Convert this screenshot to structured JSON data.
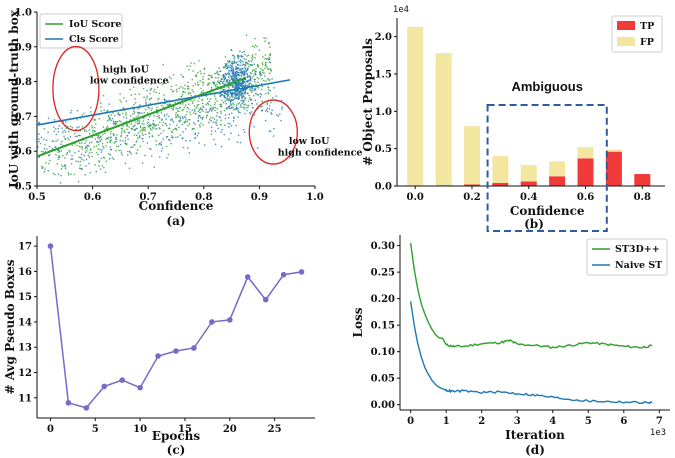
{
  "colors": {
    "iou": "#2ca02c",
    "cls": "#1f77b4",
    "tp": "#f03a3a",
    "fp": "#f2e6a0",
    "epoch_line": "#7b68c8",
    "st3d": "#2ca02c",
    "naive": "#1f77b4",
    "ambig": "#2e5c9e",
    "ellipse": "#e02020"
  },
  "chart_data": [
    {
      "type": "scatter",
      "label": "(a)",
      "xlabel": "Confidence",
      "ylabel": "IoU with ground-truth box",
      "xlim": [
        0.5,
        1.0
      ],
      "ylim": [
        0.5,
        1.0
      ],
      "xticks": [
        "0.5",
        "0.6",
        "0.7",
        "0.8",
        "0.9",
        "1.0"
      ],
      "yticks": [
        "0.5",
        "0.6",
        "0.7",
        "0.8",
        "0.9",
        "1.0"
      ],
      "legend": "top-left",
      "series": [
        {
          "name": "IoU Score",
          "fit_line": {
            "x": [
              0.5,
              0.875
            ],
            "y": [
              0.585,
              0.81
            ]
          }
        },
        {
          "name": "Cls Score",
          "fit_line": {
            "x": [
              0.5,
              0.955
            ],
            "y": [
              0.675,
              0.805
            ]
          }
        }
      ],
      "annotations": [
        {
          "text": "high IoU",
          "text2": "low confidence"
        },
        {
          "text": "low IoU",
          "text2": "high confidence"
        }
      ]
    },
    {
      "type": "bar",
      "label": "(b)",
      "xlabel": "Confidence",
      "ylabel": "# Object Proposals",
      "scale_note": "1e4",
      "x": [
        0.0,
        0.1,
        0.2,
        0.3,
        0.4,
        0.5,
        0.6,
        0.7,
        0.8
      ],
      "xticks": [
        "0.0",
        "0.2",
        "0.4",
        "0.6",
        "0.8"
      ],
      "yticks": [
        "0.0",
        "0.5",
        "1.0",
        "1.5",
        "2.0"
      ],
      "ylim": [
        0,
        2.25
      ],
      "legend": "top-right",
      "series": [
        {
          "name": "TP",
          "values": [
            0.0,
            0.01,
            0.02,
            0.04,
            0.06,
            0.13,
            0.37,
            0.46,
            0.16
          ]
        },
        {
          "name": "FP",
          "values": [
            2.13,
            1.77,
            0.78,
            0.36,
            0.22,
            0.2,
            0.15,
            0.03,
            0.0
          ]
        }
      ],
      "annotation": "Ambiguous"
    },
    {
      "type": "line",
      "label": "(c)",
      "xlabel": "Epochs",
      "ylabel": "# Avg Pseudo Boxes",
      "xticks": [
        "0",
        "5",
        "10",
        "15",
        "20",
        "25"
      ],
      "yticks": [
        "11",
        "12",
        "13",
        "14",
        "15",
        "16",
        "17"
      ],
      "xlim": [
        -1.5,
        29.5
      ],
      "ylim": [
        10.2,
        17.4
      ],
      "x": [
        0,
        2,
        4,
        6,
        8,
        10,
        12,
        14,
        16,
        18,
        20,
        22,
        24,
        26,
        28
      ],
      "values": [
        17.0,
        10.8,
        10.6,
        11.45,
        11.7,
        11.4,
        12.65,
        12.85,
        12.97,
        14.0,
        14.08,
        15.78,
        14.88,
        15.87,
        15.98
      ]
    },
    {
      "type": "line",
      "label": "(d)",
      "xlabel": "Iteration",
      "ylabel": "Loss",
      "scale_note": "1e3",
      "xticks": [
        "0",
        "1",
        "2",
        "3",
        "4",
        "5",
        "6",
        "7"
      ],
      "yticks": [
        "0.00",
        "0.05",
        "0.10",
        "0.15",
        "0.20",
        "0.25",
        "0.30"
      ],
      "xlim": [
        -0.3,
        7.3
      ],
      "ylim": [
        -0.01,
        0.32
      ],
      "legend": "top-right",
      "series": [
        {
          "name": "ST3D++",
          "x": [
            0,
            0.1,
            0.2,
            0.3,
            0.4,
            0.5,
            0.6,
            0.7,
            0.8,
            0.9,
            1.0,
            1.2,
            1.5,
            2.0,
            2.5,
            2.8,
            3.0,
            3.5,
            4.0,
            4.5,
            5.0,
            5.5,
            6.0,
            6.5,
            6.8
          ],
          "values": [
            0.305,
            0.255,
            0.218,
            0.19,
            0.171,
            0.155,
            0.142,
            0.132,
            0.126,
            0.125,
            0.113,
            0.11,
            0.11,
            0.115,
            0.117,
            0.121,
            0.114,
            0.112,
            0.108,
            0.112,
            0.117,
            0.114,
            0.11,
            0.108,
            0.111
          ]
        },
        {
          "name": "Naive ST",
          "x": [
            0,
            0.1,
            0.2,
            0.3,
            0.4,
            0.5,
            0.6,
            0.7,
            0.8,
            0.9,
            1.0,
            1.2,
            1.5,
            2.0,
            2.5,
            3.0,
            3.5,
            4.0,
            4.5,
            5.0,
            5.5,
            6.0,
            6.5,
            6.8
          ],
          "values": [
            0.195,
            0.15,
            0.115,
            0.09,
            0.07,
            0.057,
            0.046,
            0.038,
            0.033,
            0.03,
            0.027,
            0.025,
            0.026,
            0.023,
            0.024,
            0.021,
            0.018,
            0.014,
            0.01,
            0.007,
            0.006,
            0.005,
            0.004,
            0.004
          ]
        }
      ]
    }
  ]
}
